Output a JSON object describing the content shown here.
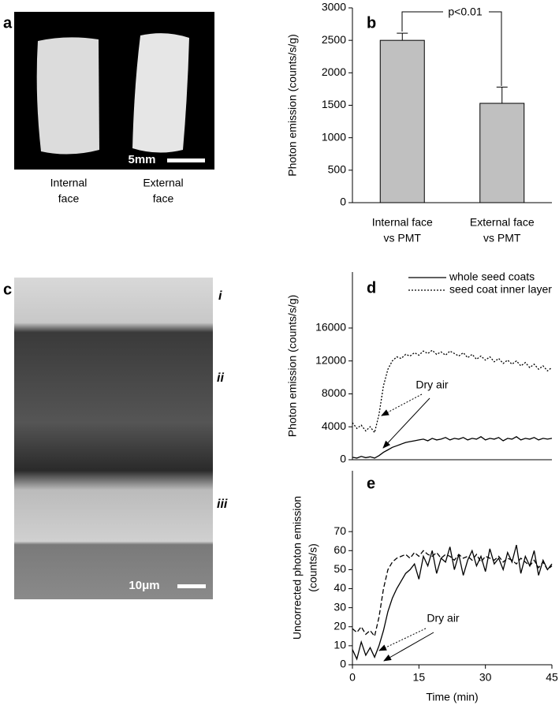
{
  "chart_data": [
    {
      "type": "bar",
      "label": "b",
      "ylabel": "Photon emission (counts/s/g)",
      "categories": [
        [
          "Internal face",
          "vs PMT"
        ],
        [
          "External face",
          "vs PMT"
        ]
      ],
      "values": [
        2500,
        1530
      ],
      "errors": [
        110,
        250
      ],
      "color": "#c0c0c0",
      "ylim": [
        0,
        3000
      ],
      "yticks": [
        0,
        500,
        1000,
        1500,
        2000,
        2500,
        3000
      ],
      "annotation": "p<0.01"
    },
    {
      "type": "line",
      "label": "d",
      "ylabel": "Photon emission (counts/s/g)",
      "x": [
        0,
        1,
        2,
        3,
        4,
        5,
        6,
        7,
        8,
        9,
        10,
        11,
        12,
        13,
        14,
        15,
        16,
        17,
        18,
        19,
        20,
        21,
        22,
        23,
        24,
        25,
        26,
        27,
        28,
        29,
        30,
        31,
        32,
        33,
        34,
        35,
        36,
        37,
        38,
        39,
        40,
        41,
        42,
        43,
        44,
        45
      ],
      "series": [
        {
          "name": "whole seed coats",
          "color": "#000000",
          "dash": "solid",
          "values": [
            300,
            200,
            400,
            250,
            350,
            200,
            500,
            900,
            1200,
            1500,
            1700,
            1900,
            2100,
            2200,
            2300,
            2400,
            2500,
            2300,
            2600,
            2400,
            2500,
            2700,
            2400,
            2600,
            2500,
            2700,
            2400,
            2600,
            2500,
            2800,
            2400,
            2600,
            2500,
            2700,
            2300,
            2600,
            2500,
            2800,
            2400,
            2600,
            2500,
            2700,
            2400,
            2600,
            2500,
            2600
          ]
        },
        {
          "name": "seed coat inner layer",
          "color": "#000000",
          "dash": "dotted",
          "values": [
            4500,
            3800,
            4200,
            3500,
            4000,
            3300,
            5500,
            9000,
            11000,
            12000,
            12500,
            12300,
            12800,
            12600,
            13000,
            12700,
            13200,
            12900,
            13300,
            12800,
            13100,
            12700,
            13200,
            12900,
            12600,
            13000,
            12400,
            12800,
            12200,
            12600,
            12100,
            12500,
            11900,
            12300,
            11700,
            12100,
            11600,
            12000,
            11400,
            11800,
            11200,
            11600,
            11000,
            11400,
            10800,
            11200
          ]
        }
      ],
      "xlim": [
        0,
        45
      ],
      "ylim": [
        0,
        22800
      ],
      "yticks": [
        0,
        4000,
        8000,
        12000,
        16000
      ],
      "annotation": "Dry air"
    },
    {
      "type": "line",
      "label": "e",
      "ylabel": [
        "Uncorrected photon emission",
        "(counts/s)"
      ],
      "xlabel": "Time (min)",
      "x": [
        0,
        1,
        2,
        3,
        4,
        5,
        6,
        7,
        8,
        9,
        10,
        11,
        12,
        13,
        14,
        15,
        16,
        17,
        18,
        19,
        20,
        21,
        22,
        23,
        24,
        25,
        26,
        27,
        28,
        29,
        30,
        31,
        32,
        33,
        34,
        35,
        36,
        37,
        38,
        39,
        40,
        41,
        42,
        43,
        44,
        45
      ],
      "series": [
        {
          "color": "#000000",
          "dash": "solid",
          "values": [
            8,
            3,
            12,
            5,
            9,
            4,
            10,
            18,
            28,
            35,
            40,
            44,
            48,
            50,
            53,
            45,
            57,
            52,
            60,
            48,
            56,
            54,
            62,
            50,
            58,
            47,
            55,
            60,
            52,
            57,
            49,
            61,
            53,
            56,
            50,
            59,
            54,
            63,
            48,
            57,
            52,
            60,
            47,
            55,
            50,
            53
          ]
        },
        {
          "color": "#000000",
          "dash": "dashed",
          "values": [
            19,
            17,
            20,
            16,
            18,
            15,
            25,
            40,
            50,
            54,
            56,
            57,
            58,
            56,
            59,
            57,
            60,
            58,
            57,
            59,
            56,
            58,
            57,
            55,
            58,
            56,
            57,
            55,
            58,
            54,
            57,
            56,
            55,
            57,
            54,
            56,
            55,
            53,
            56,
            54,
            52,
            55,
            51,
            54,
            50,
            52
          ]
        }
      ],
      "xlim": [
        0,
        45
      ],
      "ylim": [
        0,
        102
      ],
      "xticks": [
        0,
        15,
        30,
        45
      ],
      "yticks": [
        0,
        10,
        20,
        30,
        40,
        50,
        60,
        70
      ],
      "annotation": "Dry air"
    }
  ],
  "images": [
    {
      "label": "a",
      "scale": "5mm",
      "captions": [
        [
          "Internal",
          "face"
        ],
        [
          "External",
          "face"
        ]
      ]
    },
    {
      "label": "c",
      "scale": "10μm",
      "layers": [
        "i",
        "ii",
        "iii"
      ]
    }
  ]
}
